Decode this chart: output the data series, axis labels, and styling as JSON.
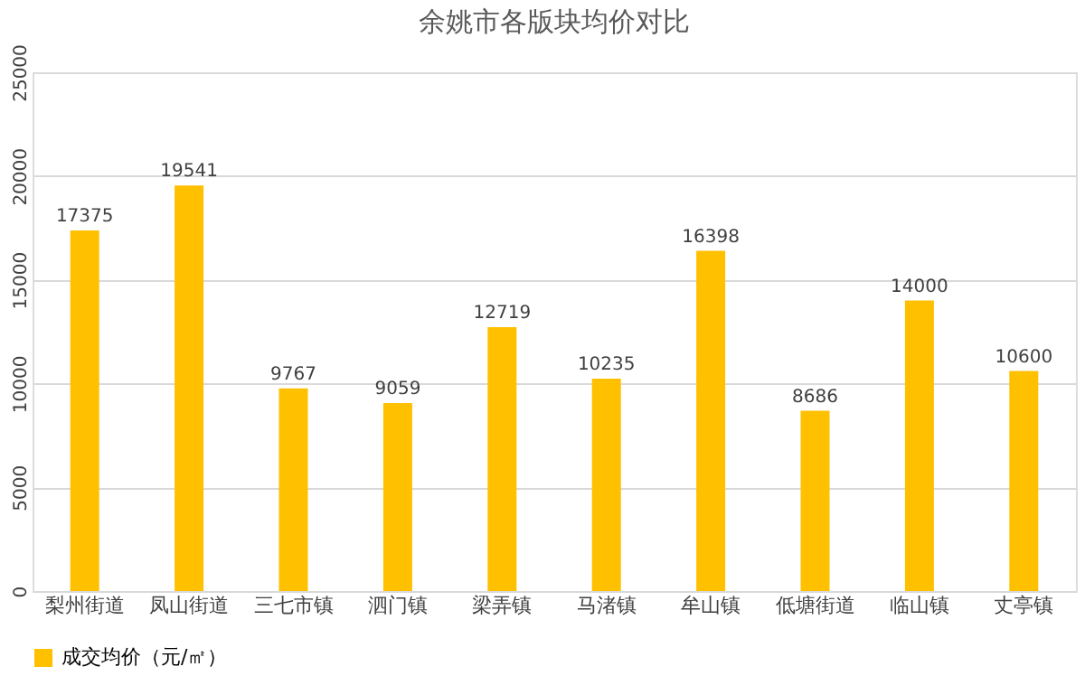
{
  "chart_data": {
    "type": "bar",
    "title": "余姚市各版块均价对比",
    "categories": [
      "梨州街道",
      "凤山街道",
      "三七市镇",
      "泗门镇",
      "梁弄镇",
      "马渚镇",
      "牟山镇",
      "低塘街道",
      "临山镇",
      "丈亭镇"
    ],
    "series": [
      {
        "name": "成交均价（元/㎡）",
        "color": "#ffc000",
        "values": [
          17375,
          19541,
          9767,
          9059,
          12719,
          10235,
          16398,
          8686,
          14000,
          10600
        ]
      }
    ],
    "ylim": [
      0,
      25000
    ],
    "yticks": [
      0,
      5000,
      10000,
      15000,
      20000,
      25000
    ],
    "grid": "y",
    "legend": "bottom",
    "data_labels": true
  }
}
